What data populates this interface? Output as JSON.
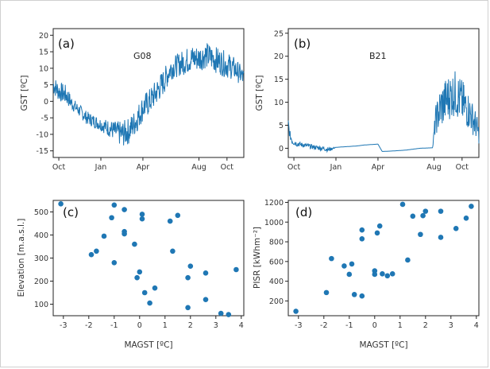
{
  "chart_data": [
    {
      "type": "line",
      "panel_label": "(a)",
      "annotation": "G08",
      "ylabel": "GST [ºC]",
      "xlabel": "",
      "x_tick_labels": [
        "Oct",
        "Jan",
        "Apr",
        "Aug",
        "Oct"
      ],
      "x_tick_months": [
        0,
        3,
        6,
        10,
        12
      ],
      "xlim_months": [
        -0.4,
        13.2
      ],
      "ylim": [
        -17,
        22
      ],
      "y_ticks": [
        -15,
        -10,
        -5,
        0,
        5,
        10,
        15,
        20
      ],
      "series": [
        {
          "color": "#1f77b4",
          "x_months": [
            -0.4,
            0,
            0.5,
            1,
            1.5,
            2,
            2.5,
            3,
            3.5,
            4,
            4.5,
            5,
            5.5,
            6,
            6.5,
            7,
            7.5,
            8,
            8.5,
            9,
            9.5,
            10,
            10.5,
            11,
            11.5,
            12,
            12.5,
            13,
            13.2
          ],
          "values": [
            5,
            3,
            2,
            -1,
            -3,
            -5,
            -6,
            -7,
            -8,
            -9,
            -10,
            -9,
            -6,
            -2,
            0,
            3,
            6,
            10,
            11,
            12,
            13,
            13,
            14,
            13,
            12,
            11,
            10,
            8,
            7
          ],
          "amplitude": [
            3,
            3,
            3,
            2,
            2,
            2,
            2,
            2,
            2.5,
            3,
            4,
            4,
            4,
            4,
            4,
            4,
            4,
            3.5,
            3.5,
            4,
            4,
            4,
            4,
            4,
            4,
            4,
            3.5,
            3,
            3
          ]
        }
      ]
    },
    {
      "type": "line",
      "panel_label": "(b)",
      "annotation": "B21",
      "ylabel": "GST [ºC]",
      "xlabel": "",
      "x_tick_labels": [
        "Oct",
        "Jan",
        "Apr",
        "Aug",
        "Oct"
      ],
      "x_tick_months": [
        0,
        3,
        6,
        10,
        12
      ],
      "xlim_months": [
        -0.4,
        13.2
      ],
      "ylim": [
        -2,
        26
      ],
      "y_ticks": [
        0,
        5,
        10,
        15,
        20,
        25
      ],
      "series": [
        {
          "color": "#1f77b4",
          "x_months": [
            -0.4,
            -0.3,
            -0.1,
            0.2,
            0.5,
            1,
            1.5,
            2,
            2.5,
            3,
            3.5,
            4,
            4.5,
            5,
            5.5,
            6,
            6.3,
            7,
            8,
            9,
            9.9,
            10.1,
            10.5,
            11,
            11.5,
            12,
            12.5,
            13,
            13.2
          ],
          "values": [
            5.5,
            3,
            1.5,
            1,
            0.8,
            0.5,
            0.2,
            0,
            -0.3,
            0.2,
            0.3,
            0.4,
            0.5,
            0.7,
            0.8,
            0.9,
            -0.7,
            -0.6,
            -0.4,
            0,
            0.1,
            6,
            9,
            11,
            12,
            10,
            8,
            5,
            3
          ],
          "amplitude": [
            1,
            1,
            0.8,
            0.6,
            0.5,
            0.5,
            0.5,
            0.5,
            0.5,
            0,
            0,
            0,
            0,
            0,
            0,
            0,
            0,
            0,
            0,
            0,
            0,
            3,
            5,
            5,
            5,
            5,
            4,
            3,
            2
          ]
        }
      ]
    },
    {
      "type": "scatter",
      "panel_label": "(c)",
      "xlabel": "MAGST [ºC]",
      "ylabel": "Elevation [m.a.s.l.]",
      "xlim": [
        -3.4,
        4.1
      ],
      "ylim": [
        50,
        550
      ],
      "x_ticks": [
        -3,
        -2,
        -1,
        0,
        1,
        2,
        3,
        4
      ],
      "y_ticks": [
        100,
        200,
        300,
        400,
        500
      ],
      "color": "#1f77b4",
      "x": [
        -3.1,
        -1.9,
        -1.7,
        -1.4,
        -1.1,
        -1.0,
        -1.0,
        -0.6,
        -0.6,
        -0.6,
        -0.2,
        -0.1,
        0.0,
        0.1,
        0.1,
        0.2,
        0.4,
        0.6,
        1.2,
        1.3,
        1.5,
        1.9,
        1.9,
        2.0,
        2.6,
        2.6,
        3.2,
        3.5,
        3.8
      ],
      "y": [
        535,
        315,
        330,
        395,
        475,
        530,
        280,
        510,
        415,
        405,
        360,
        215,
        240,
        490,
        470,
        150,
        105,
        170,
        460,
        330,
        485,
        215,
        85,
        265,
        235,
        120,
        60,
        55,
        250
      ]
    },
    {
      "type": "scatter",
      "panel_label": "(d)",
      "xlabel": "MAGST [ºC]",
      "ylabel": "PISR [kWhm⁻²]",
      "xlim": [
        -3.4,
        4.1
      ],
      "ylim": [
        50,
        1220
      ],
      "x_ticks": [
        -3,
        -2,
        -1,
        0,
        1,
        2,
        3,
        4
      ],
      "y_ticks": [
        200,
        400,
        600,
        800,
        1000,
        1200
      ],
      "color": "#1f77b4",
      "x": [
        -3.1,
        -1.9,
        -1.7,
        -1.2,
        -1.0,
        -0.9,
        -0.8,
        -0.5,
        -0.5,
        -0.5,
        0.0,
        0.0,
        0.1,
        0.2,
        0.3,
        0.5,
        0.7,
        1.1,
        1.3,
        1.5,
        1.8,
        1.9,
        2.0,
        2.6,
        2.6,
        3.2,
        3.6,
        3.8
      ],
      "y": [
        95,
        285,
        630,
        555,
        470,
        575,
        265,
        920,
        830,
        250,
        505,
        470,
        890,
        960,
        475,
        455,
        475,
        1180,
        615,
        1060,
        875,
        1065,
        1110,
        1110,
        845,
        935,
        1040,
        1160
      ]
    }
  ]
}
